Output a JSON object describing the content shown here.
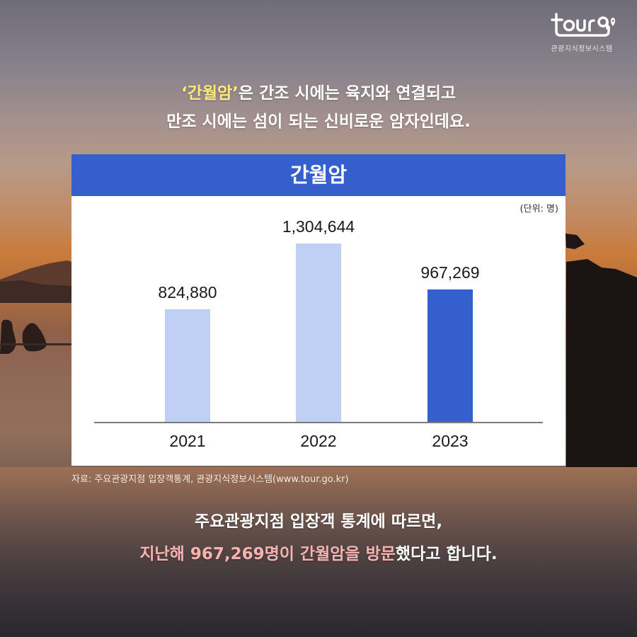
{
  "brand": {
    "logo_text": "tourgo",
    "subtitle": "관광지식정보시스템"
  },
  "intro": {
    "highlight": "‘간월암’",
    "line1_rest": "은 간조 시에는 육지와 연결되고",
    "line2": "만조 시에는 섬이 되는 신비로운 암자인데요."
  },
  "card": {
    "title": "간월암",
    "unit": "(단위: 명)"
  },
  "colors": {
    "header_blue": "#365fce",
    "bar_light": "#c0cff4",
    "bar_highlight": "#365fce",
    "intro_highlight": "#fbe97d",
    "outro_highlight": "#f8b3b1"
  },
  "chart_data": {
    "type": "bar",
    "title": "간월암",
    "unit": "(단위: 명)",
    "categories": [
      "2021",
      "2022",
      "2023"
    ],
    "values": [
      824880,
      1304644,
      967269
    ],
    "labels": [
      "824,880",
      "1,304,644",
      "967,269"
    ],
    "highlight_index": 2,
    "xlabel": "",
    "ylabel": "",
    "grid": false,
    "legend": "none"
  },
  "source": "자료: 주요관광지점 입장객통계, 관광지식정보시스템(www.tour.go.kr)",
  "outro": {
    "line1": "주요관광지점 입장객 통계에 따르면,",
    "line2_pink": "지난해 967,269명이 간월암을 방문",
    "line2_rest": "했다고 합니다."
  }
}
